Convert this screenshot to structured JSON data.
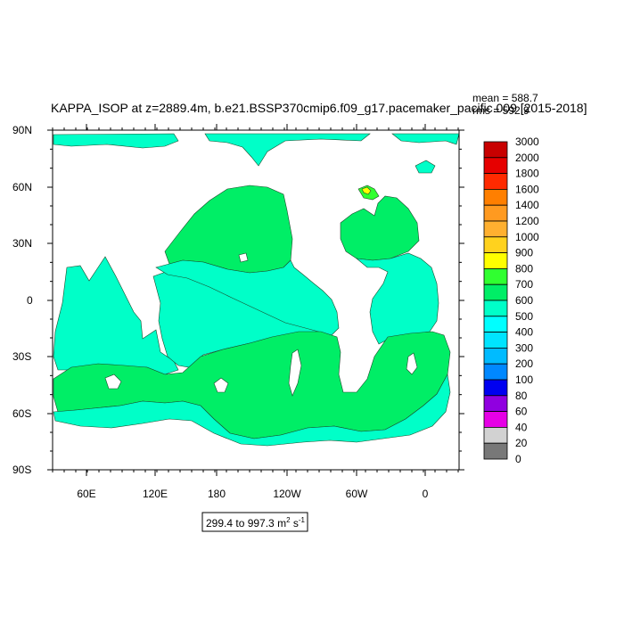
{
  "title": "KAPPA_ISOP at z=2889.4m, b.e21.BSSP370cmip6.f09_g17.pacemaker_pacific.009 [2015-2018]",
  "stats": {
    "mean": "mean = 588.7",
    "rms": "rms = 592.9"
  },
  "axes": {
    "y_ticks": [
      "90N",
      "60N",
      "30N",
      "0",
      "30S",
      "60S",
      "90S"
    ],
    "x_ticks": [
      "60E",
      "120E",
      "180",
      "120W",
      "60W",
      "0"
    ]
  },
  "range_box": {
    "prefix": "299.4 to 997.3 m",
    "exp1": "2",
    "mid": " s",
    "exp2": "-1"
  },
  "colorbar": {
    "levels": [
      "3000",
      "2000",
      "1800",
      "1600",
      "1400",
      "1200",
      "1000",
      "900",
      "800",
      "700",
      "600",
      "500",
      "400",
      "300",
      "200",
      "100",
      "80",
      "60",
      "40",
      "20",
      "0"
    ],
    "colors": [
      "#c80000",
      "#e60000",
      "#ff2a00",
      "#ff7f00",
      "#ff9a20",
      "#ffb030",
      "#ffd21e",
      "#ffff00",
      "#30ff30",
      "#00ee66",
      "#00ffc8",
      "#00ffff",
      "#00e4ff",
      "#00bbff",
      "#0088ff",
      "#0000f0",
      "#9000e0",
      "#e600e6",
      "#d2d2d2",
      "#787878"
    ]
  },
  "map": {
    "ocean_colors": {
      "green_600_700": "#00ee66",
      "cyan_500_600": "#00ffc8",
      "green_700_800": "#30ff30",
      "yellow_800_900": "#ffff00"
    }
  }
}
